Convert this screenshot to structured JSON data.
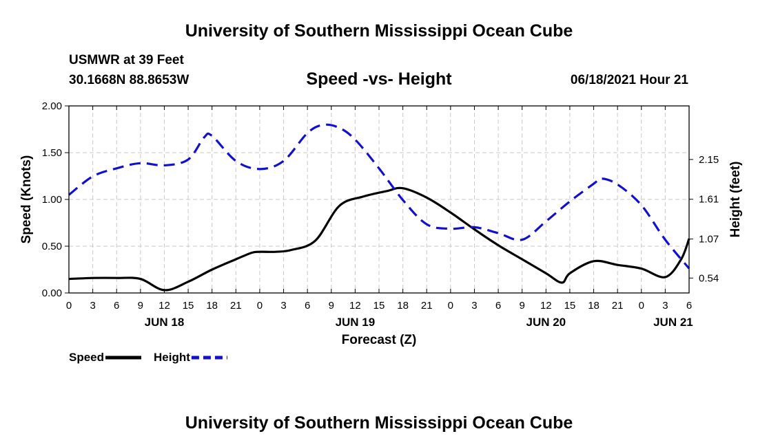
{
  "header": {
    "title": "University of Southern Mississippi Ocean Cube",
    "station": "USMWR at 39 Feet",
    "location": "30.1668N  88.8653W",
    "datetime": "06/18/2021 Hour 21"
  },
  "footer": {
    "title": "University of Southern Mississippi Ocean Cube"
  },
  "chart_data": {
    "type": "line",
    "title": "Speed -vs- Height",
    "xlabel": "Forecast (Z)",
    "ylabel": "Speed (Knots)",
    "y2label": "Height (feet)",
    "x_range": [
      0,
      78
    ],
    "ylim": [
      0,
      2
    ],
    "y2lim": [
      0.3375,
      2.8775
    ],
    "x_ticks": [
      {
        "x": 0,
        "label": "0"
      },
      {
        "x": 3,
        "label": "3"
      },
      {
        "x": 6,
        "label": "6"
      },
      {
        "x": 9,
        "label": "9"
      },
      {
        "x": 12,
        "label": "12"
      },
      {
        "x": 15,
        "label": "15"
      },
      {
        "x": 18,
        "label": "18"
      },
      {
        "x": 21,
        "label": "21"
      },
      {
        "x": 24,
        "label": "0"
      },
      {
        "x": 27,
        "label": "3"
      },
      {
        "x": 30,
        "label": "6"
      },
      {
        "x": 33,
        "label": "9"
      },
      {
        "x": 36,
        "label": "12"
      },
      {
        "x": 39,
        "label": "15"
      },
      {
        "x": 42,
        "label": "18"
      },
      {
        "x": 45,
        "label": "21"
      },
      {
        "x": 48,
        "label": "0"
      },
      {
        "x": 51,
        "label": "3"
      },
      {
        "x": 54,
        "label": "6"
      },
      {
        "x": 57,
        "label": "9"
      },
      {
        "x": 60,
        "label": "12"
      },
      {
        "x": 63,
        "label": "15"
      },
      {
        "x": 66,
        "label": "18"
      },
      {
        "x": 69,
        "label": "21"
      },
      {
        "x": 72,
        "label": "0"
      },
      {
        "x": 75,
        "label": "3"
      },
      {
        "x": 78,
        "label": "6"
      }
    ],
    "date_labels": [
      {
        "x": 12,
        "label": "JUN 18"
      },
      {
        "x": 36,
        "label": "JUN 19"
      },
      {
        "x": 60,
        "label": "JUN 20"
      },
      {
        "x": 76,
        "label": "JUN 21"
      }
    ],
    "y_ticks": [
      "0.00",
      "0.50",
      "1.00",
      "1.50",
      "2.00"
    ],
    "y_tick_values": [
      0,
      0.5,
      1,
      1.5,
      2
    ],
    "y2_ticks": [
      "0.54",
      "1.07",
      "1.61",
      "2.15"
    ],
    "y2_tick_values": [
      0.54,
      1.07,
      1.61,
      2.15
    ],
    "grid": true,
    "series": [
      {
        "name": "Speed",
        "axis": "left",
        "color": "#000000",
        "style": "solid",
        "x": [
          0,
          3,
          6,
          9,
          12,
          15,
          18,
          21,
          23,
          24,
          26,
          28,
          31,
          34,
          37,
          40,
          42,
          45,
          48,
          51,
          54,
          57,
          60,
          62,
          63,
          66,
          69,
          72,
          75,
          77,
          78
        ],
        "values": [
          0.15,
          0.16,
          0.16,
          0.15,
          0.03,
          0.12,
          0.25,
          0.36,
          0.43,
          0.44,
          0.44,
          0.46,
          0.56,
          0.93,
          1.03,
          1.09,
          1.12,
          1.02,
          0.86,
          0.68,
          0.51,
          0.36,
          0.21,
          0.11,
          0.21,
          0.34,
          0.3,
          0.26,
          0.17,
          0.36,
          0.58
        ]
      },
      {
        "name": "Height",
        "axis": "right",
        "color": "#1111cc",
        "style": "dashed",
        "x": [
          0,
          3,
          6,
          9,
          12,
          15,
          17,
          18,
          21,
          24,
          27,
          30,
          32,
          34,
          36,
          39,
          42,
          45,
          48,
          51,
          54,
          57,
          60,
          63,
          66,
          67,
          69,
          72,
          75,
          78
        ],
        "values": [
          1.67,
          1.92,
          2.03,
          2.1,
          2.07,
          2.15,
          2.45,
          2.47,
          2.13,
          2.02,
          2.13,
          2.51,
          2.62,
          2.58,
          2.42,
          2.03,
          1.6,
          1.27,
          1.21,
          1.23,
          1.15,
          1.06,
          1.31,
          1.58,
          1.82,
          1.89,
          1.81,
          1.53,
          1.06,
          0.67
        ]
      }
    ],
    "legend": [
      {
        "label": "Speed",
        "color": "#000000",
        "style": "solid"
      },
      {
        "label": "Height",
        "color": "#1111cc",
        "style": "dashed"
      }
    ],
    "legend_position": "bottom-left"
  }
}
